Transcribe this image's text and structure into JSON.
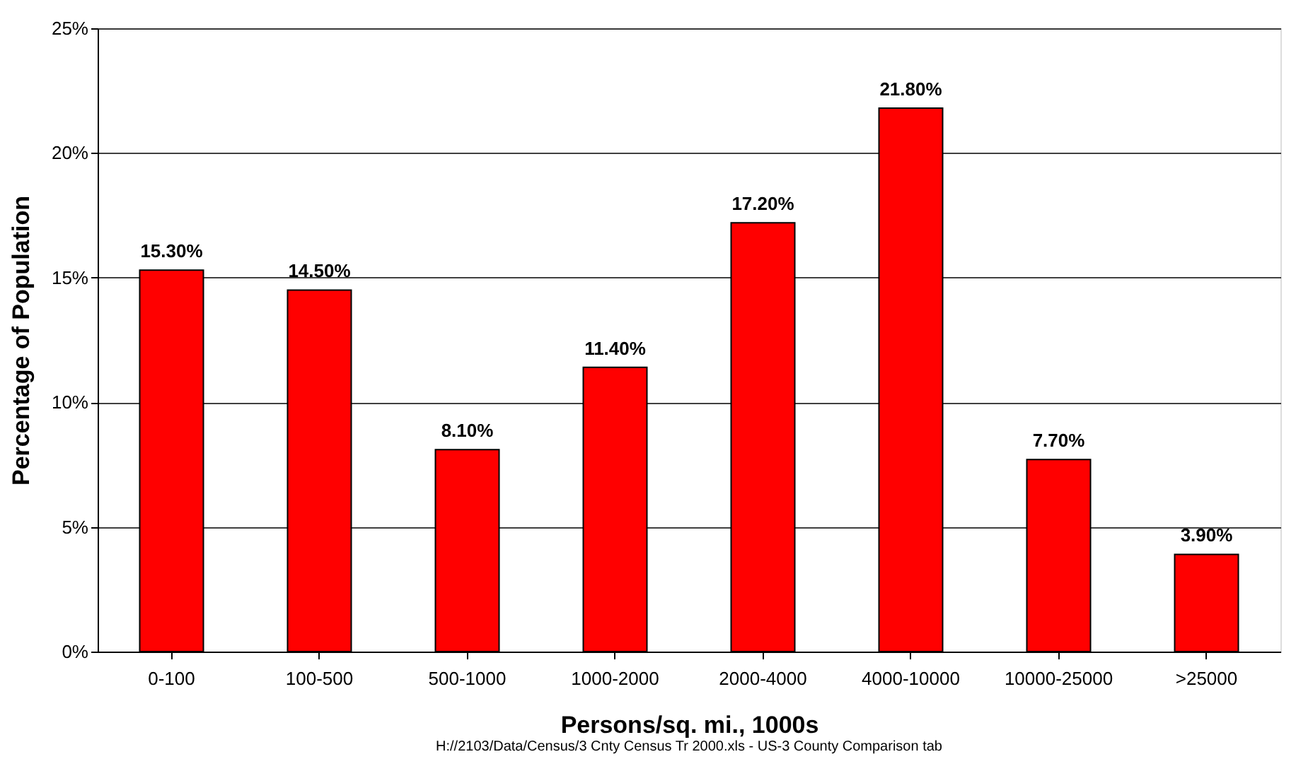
{
  "chart_data": {
    "type": "bar",
    "xlabel": "Persons/sq. mi., 1000s",
    "ylabel": "Percentage of Population",
    "categories": [
      "0-100",
      "100-500",
      "500-1000",
      "1000-2000",
      "2000-4000",
      "4000-10000",
      "10000-25000",
      ">25000"
    ],
    "values": [
      15.3,
      14.5,
      8.1,
      11.4,
      17.2,
      21.8,
      7.7,
      3.9
    ],
    "color": "#ff0000",
    "value_labels": [
      "15.30%",
      "14.50%",
      "8.10%",
      "11.40%",
      "17.20%",
      "21.80%",
      "7.70%",
      "3.90%"
    ],
    "ylim": [
      0,
      25
    ],
    "yticks": [
      {
        "value": 0,
        "label": "0%"
      },
      {
        "value": 5,
        "label": "5%"
      },
      {
        "value": 10,
        "label": "10%"
      },
      {
        "value": 15,
        "label": "15%"
      },
      {
        "value": 20,
        "label": "20%"
      },
      {
        "value": 25,
        "label": "25%"
      }
    ],
    "grid": "y",
    "annotations": [
      "H://2103/Data/Census/3 Cnty Census Tr 2000.xls - US-3 County Comparison tab"
    ]
  }
}
